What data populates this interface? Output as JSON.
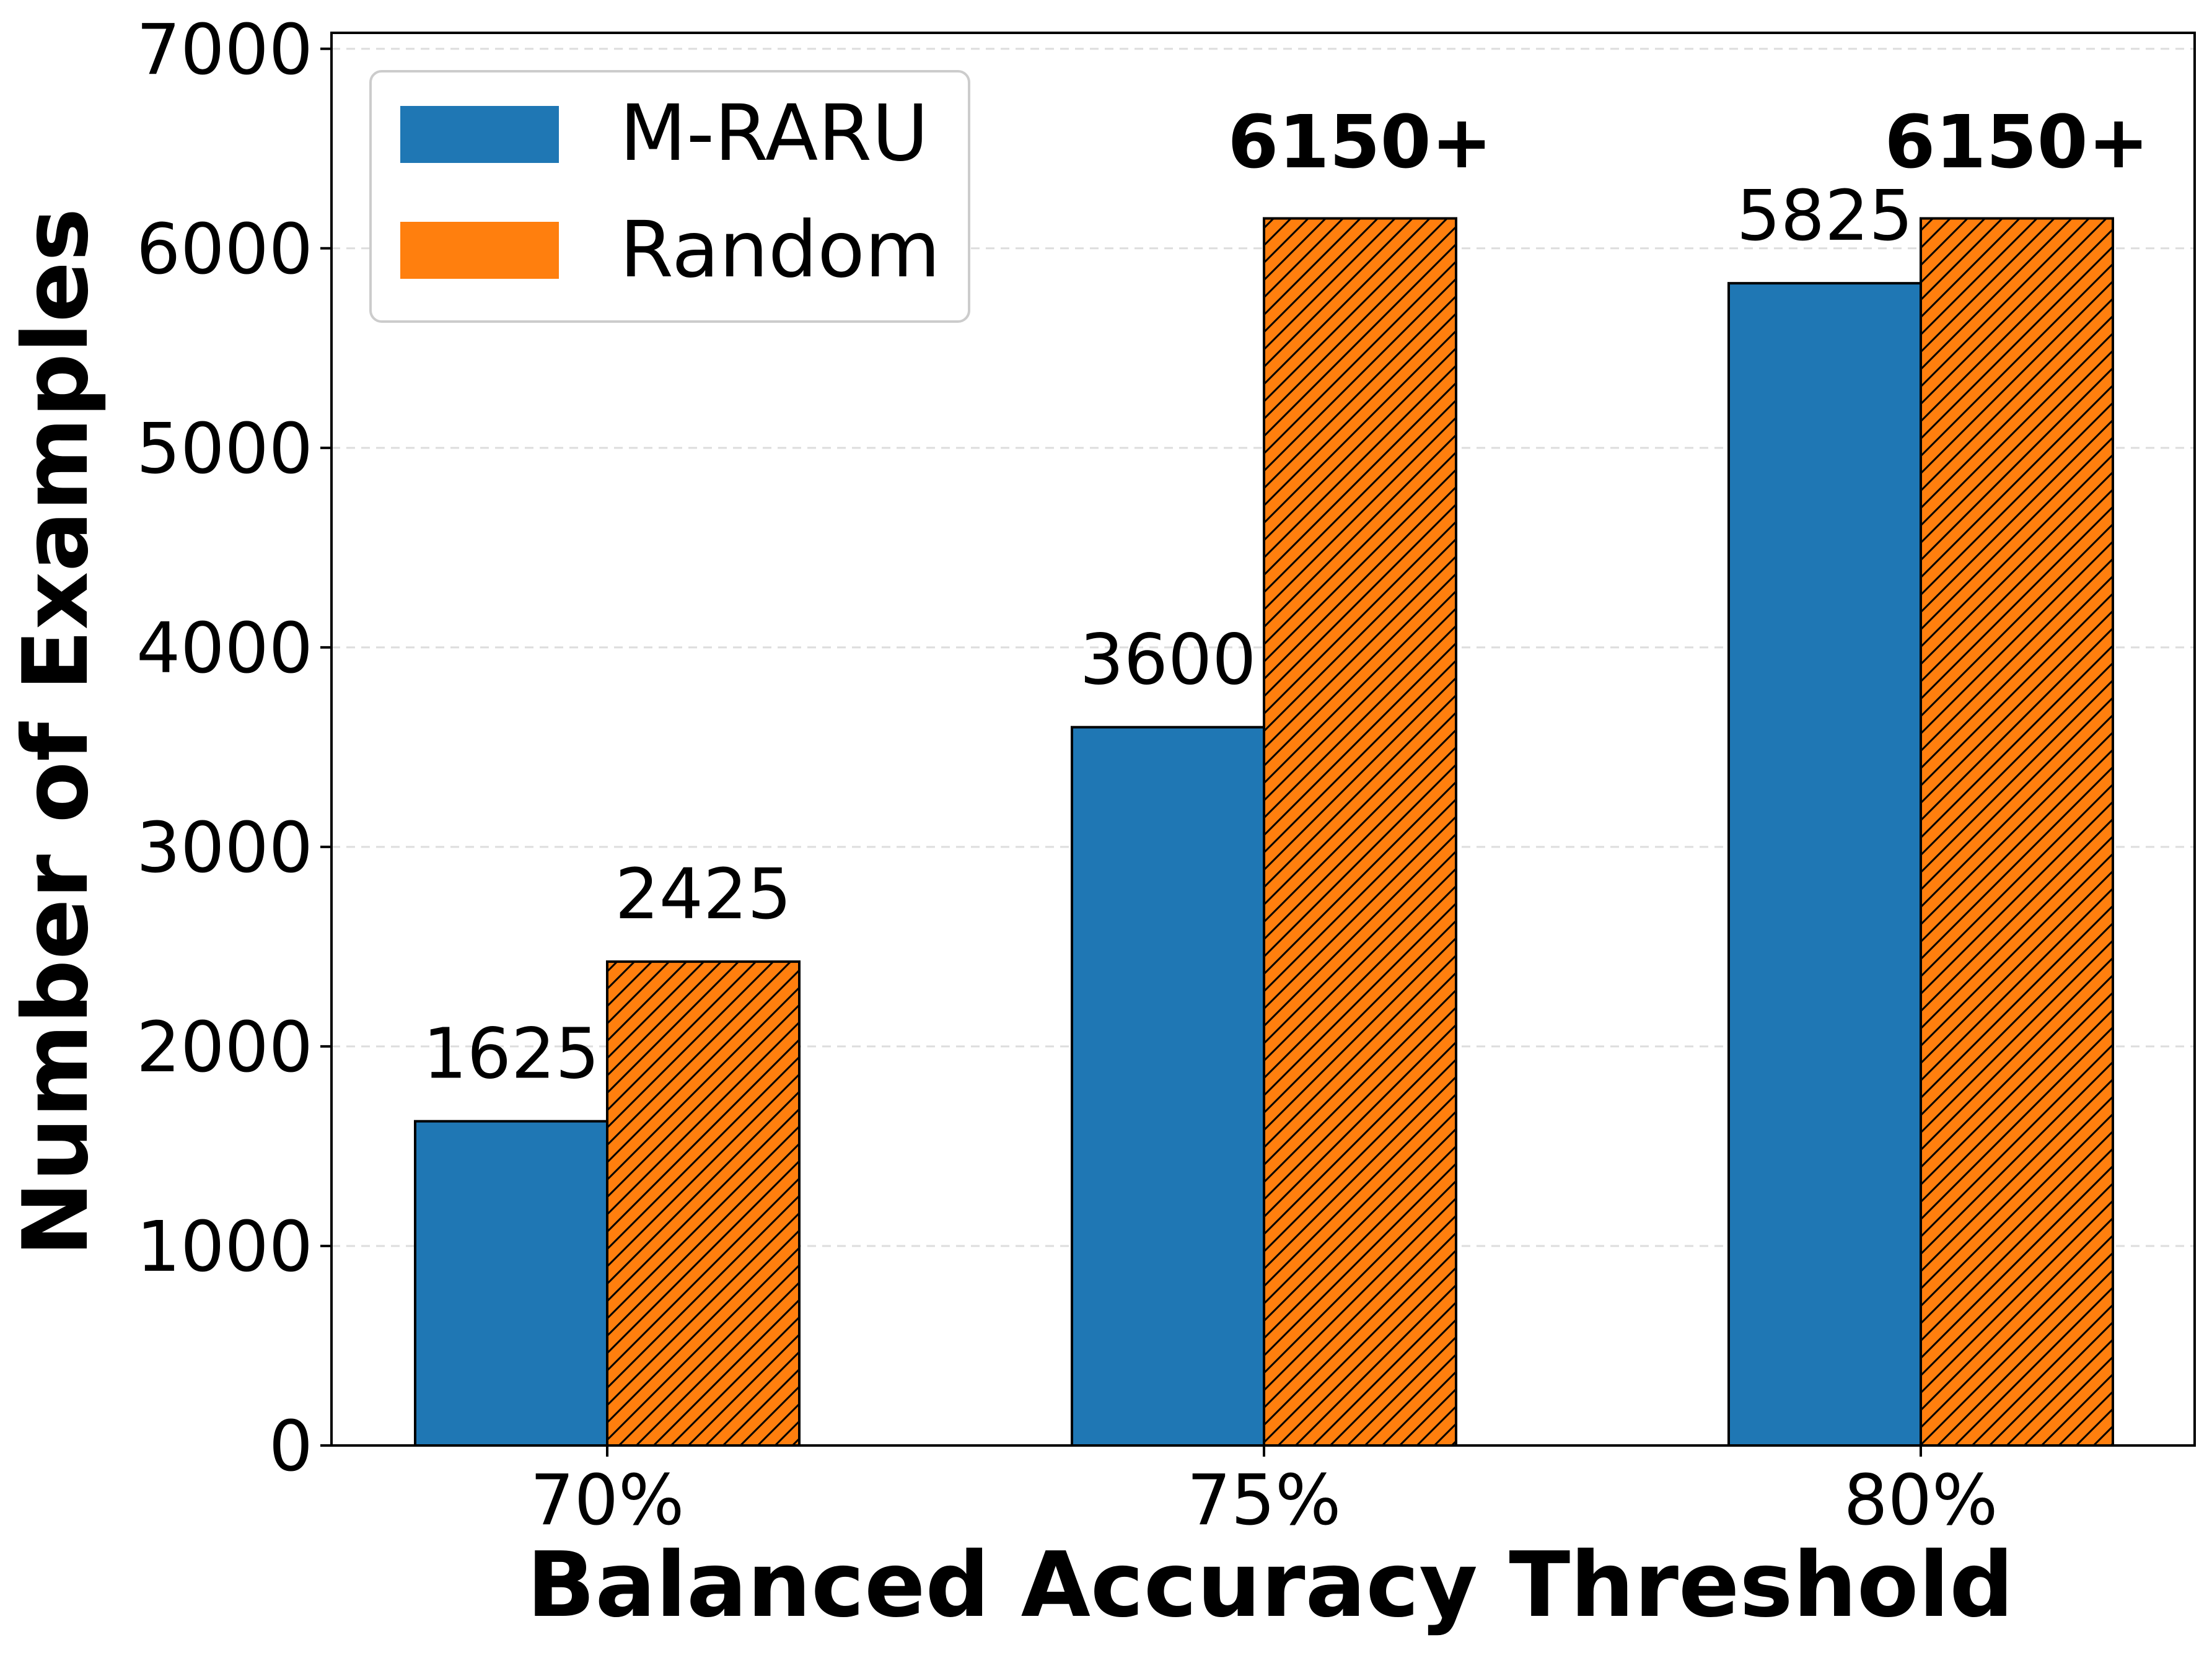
{
  "chart_data": {
    "type": "bar",
    "categories": [
      "70%",
      "75%",
      "80%"
    ],
    "series": [
      {
        "name": "M-RARU",
        "values": [
          1625,
          3600,
          5825
        ],
        "labels": [
          "1625",
          "3600",
          "5825"
        ],
        "color": "#1f77b4",
        "hatch": false,
        "label_bold": [
          false,
          false,
          false
        ]
      },
      {
        "name": "Random",
        "values": [
          2425,
          6150,
          6150
        ],
        "labels": [
          "2425",
          "6150+",
          "6150+"
        ],
        "color": "#ff7f0e",
        "hatch": true,
        "label_bold": [
          false,
          true,
          true
        ]
      }
    ],
    "xlabel": "Balanced Accuracy Threshold",
    "ylabel": "Number of Examples",
    "ylim": [
      0,
      7080
    ],
    "yticks": [
      0,
      1000,
      2000,
      3000,
      4000,
      5000,
      6000,
      7000
    ],
    "ytick_labels": [
      "0",
      "1000",
      "2000",
      "3000",
      "4000",
      "5000",
      "6000",
      "7000"
    ],
    "grid": "horizontal dashed",
    "legend_position": "top-left"
  }
}
